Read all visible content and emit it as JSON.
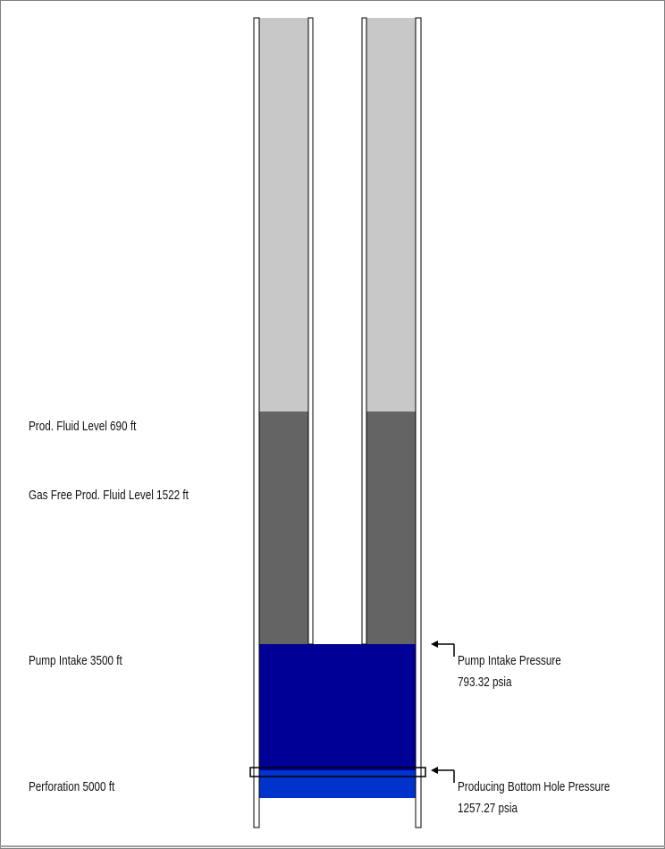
{
  "labels": {
    "prod_fluid_level": "Prod. Fluid Level 690 ft",
    "gas_free_fluid_level": "Gas Free Prod. Fluid Level 1522 ft",
    "pump_intake": "Pump Intake 3500 ft",
    "perforation": "Perforation 5000 ft",
    "pump_intake_pressure_title": "Pump Intake Pressure",
    "pump_intake_pressure_value": "793.32 psia",
    "bottom_hole_pressure_title": "Producing Bottom Hole Pressure",
    "bottom_hole_pressure_value": "1257.27 psia"
  },
  "colors": {
    "gas_column": "#c8c8c8",
    "gas_free_fluid": "#646464",
    "liquid": "#000096",
    "perforation_zone": "#0033cc",
    "pipe_wall": "#ffffff",
    "outline": "#000000",
    "frame_border": "#808080"
  }
}
